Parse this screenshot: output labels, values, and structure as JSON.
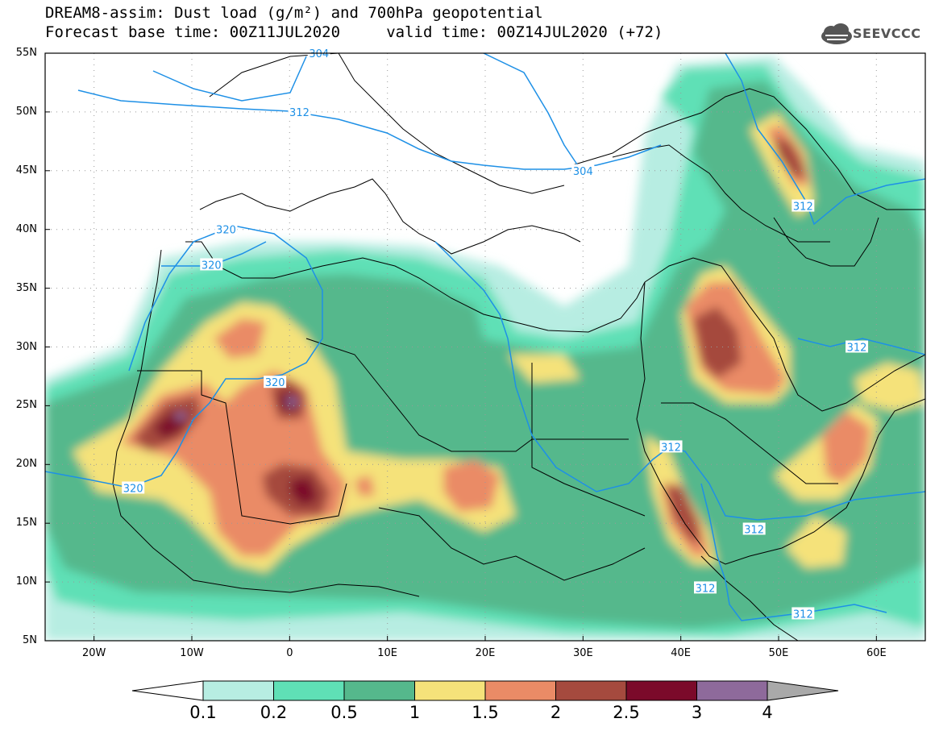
{
  "header": {
    "line1": "DREAM8-assim: Dust load (g/m²) and 700hPa geopotential",
    "line2": "Forecast base time: 00Z11JUL2020     valid time: 00Z14JUL2020 (+72)",
    "logo_text": "SEEVCCC"
  },
  "map": {
    "lon_range": [
      -25,
      65
    ],
    "lat_range": [
      5,
      55
    ],
    "lat_ticks": [
      "55N",
      "50N",
      "45N",
      "40N",
      "35N",
      "30N",
      "25N",
      "20N",
      "15N",
      "10N",
      "5N"
    ],
    "lon_ticks": [
      "20W",
      "10W",
      "0",
      "10E",
      "20E",
      "30E",
      "40E",
      "50E",
      "60E"
    ],
    "contour_labels": [
      {
        "text": "304",
        "lon": 3,
        "lat": 55
      },
      {
        "text": "312",
        "lon": 1,
        "lat": 50
      },
      {
        "text": "304",
        "lon": 30,
        "lat": 45
      },
      {
        "text": "312",
        "lon": 52.5,
        "lat": 42
      },
      {
        "text": "320",
        "lon": -6.5,
        "lat": 40
      },
      {
        "text": "320",
        "lon": -8,
        "lat": 37
      },
      {
        "text": "320",
        "lon": -1.5,
        "lat": 27
      },
      {
        "text": "312",
        "lon": 58,
        "lat": 30
      },
      {
        "text": "312",
        "lon": 39,
        "lat": 21.5
      },
      {
        "text": "320",
        "lon": -16,
        "lat": 18
      },
      {
        "text": "312",
        "lon": 47.5,
        "lat": 14.5
      },
      {
        "text": "312",
        "lon": 42.5,
        "lat": 9.5
      },
      {
        "text": "312",
        "lon": 52.5,
        "lat": 7.3
      }
    ]
  },
  "legend": {
    "labels": [
      "0.1",
      "0.2",
      "0.5",
      "1",
      "1.5",
      "2",
      "2.5",
      "3",
      "4"
    ],
    "colors": [
      "#b7ede2",
      "#5fe0b6",
      "#55b88c",
      "#f5e27a",
      "#ea8b66",
      "#a54a3e",
      "#7b0a2a",
      "#8e6a9b"
    ],
    "under_color": "#ffffff",
    "over_color": "#a9a9a9"
  },
  "colors": {
    "contour": "#1e90e6",
    "coast": "#000000",
    "frame": "#000000"
  }
}
